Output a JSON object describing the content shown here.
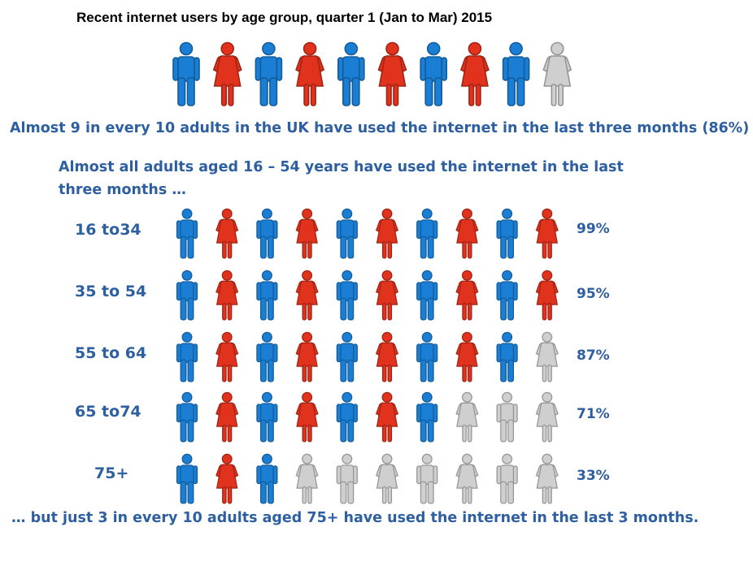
{
  "title": "Recent internet users by age group, quarter 1 (Jan to Mar) 2015",
  "headline": "Almost 9 in every 10 adults in the UK have used the internet in the last three months (86%)",
  "subhead": "Almost all adults aged 16 – 54 years have used the internet in the last three months …",
  "footer": "… but just 3 in every 10 adults aged 75+ have used the internet in the last 3 months.",
  "colors": {
    "male": "#1a7fd4",
    "female": "#e0321c",
    "inactive": "#cfcfcf",
    "text": "#2e5fa0"
  },
  "icon_names": [
    "male-person-icon",
    "female-person-icon"
  ],
  "chart_data": {
    "type": "pictogram",
    "icons_per_row": 10,
    "overall": {
      "value": 86,
      "filled_icons": 9
    },
    "categories": [
      "16 to34",
      "35 to 54",
      "55 to 64",
      "65 to74",
      "75+"
    ],
    "values": [
      99,
      95,
      87,
      71,
      33
    ],
    "value_labels": [
      "99%",
      "95%",
      "87%",
      "71%",
      "33%"
    ],
    "filled_icons": [
      10,
      10,
      9,
      7,
      3
    ]
  }
}
